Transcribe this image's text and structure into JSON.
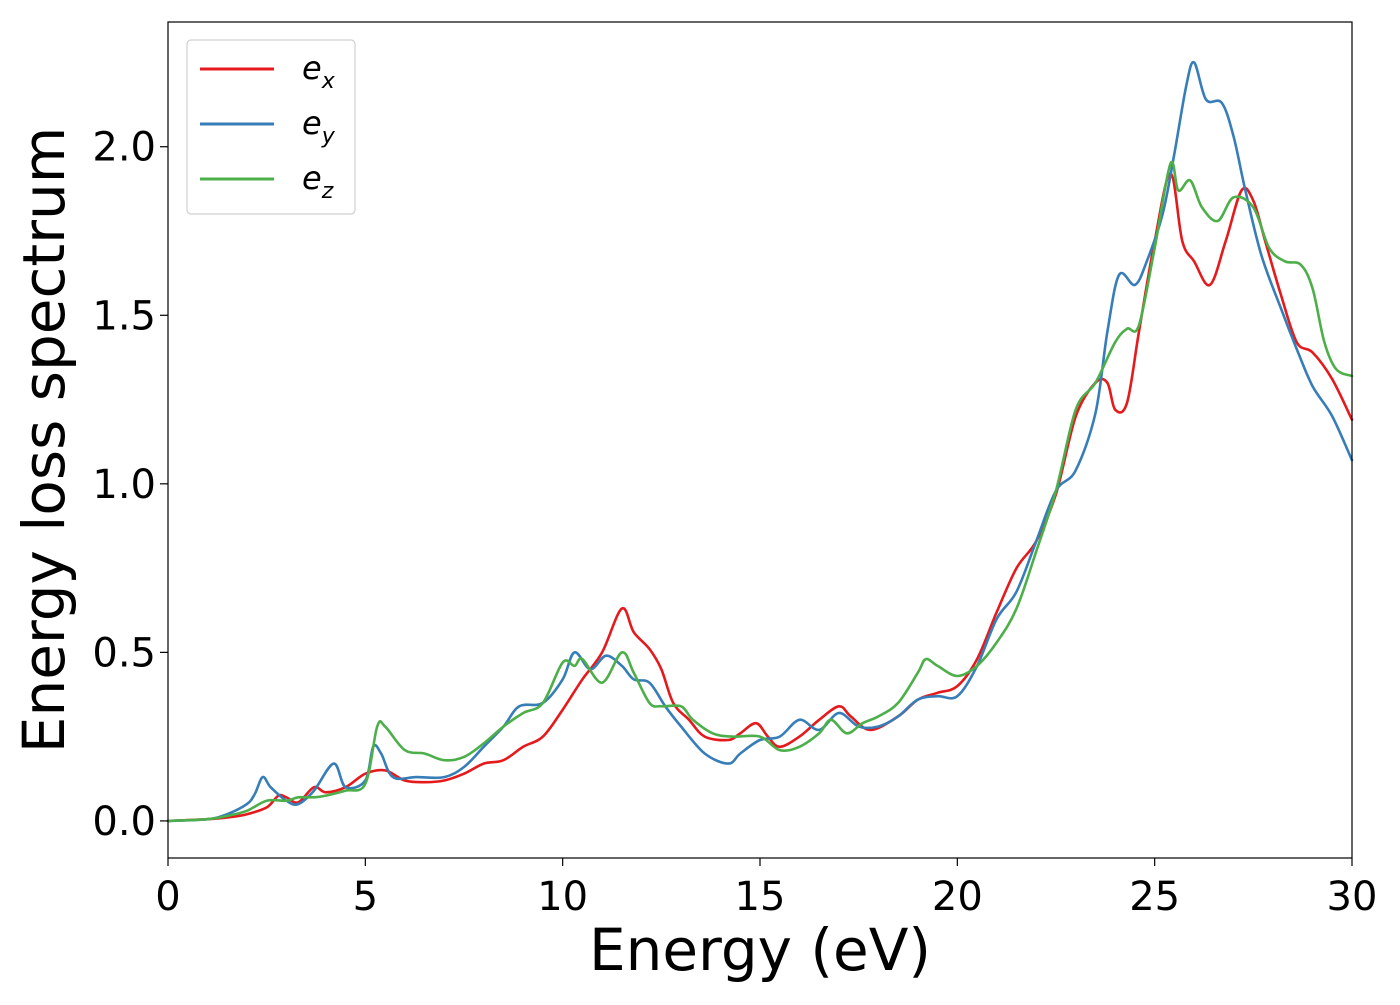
{
  "chart_data": {
    "type": "line",
    "title": "",
    "xlabel": "Energy (eV)",
    "ylabel": "Energy loss spectrum",
    "xlim": [
      0,
      30
    ],
    "ylim": [
      -0.11,
      2.37
    ],
    "xticks": [
      0,
      5,
      10,
      15,
      20,
      25,
      30
    ],
    "xtick_labels": [
      "0",
      "5",
      "10",
      "15",
      "20",
      "25",
      "30"
    ],
    "yticks": [
      0.0,
      0.5,
      1.0,
      1.5,
      2.0
    ],
    "ytick_labels": [
      "0.0",
      "0.5",
      "1.0",
      "1.5",
      "2.0"
    ],
    "grid": false,
    "legend_position": "top-left",
    "series": [
      {
        "name": "e_x",
        "legend_base": "e",
        "legend_sub": "x",
        "color": "#e41a1c",
        "points": [
          [
            0,
            0
          ],
          [
            1,
            0.005
          ],
          [
            1.5,
            0.01
          ],
          [
            2,
            0.02
          ],
          [
            2.5,
            0.04
          ],
          [
            2.8,
            0.075
          ],
          [
            3,
            0.07
          ],
          [
            3.3,
            0.055
          ],
          [
            3.7,
            0.1
          ],
          [
            4,
            0.085
          ],
          [
            4.5,
            0.1
          ],
          [
            5,
            0.14
          ],
          [
            5.5,
            0.15
          ],
          [
            6,
            0.12
          ],
          [
            6.5,
            0.115
          ],
          [
            7,
            0.12
          ],
          [
            7.5,
            0.14
          ],
          [
            8,
            0.17
          ],
          [
            8.5,
            0.18
          ],
          [
            9,
            0.22
          ],
          [
            9.5,
            0.25
          ],
          [
            10,
            0.33
          ],
          [
            10.5,
            0.42
          ],
          [
            11,
            0.5
          ],
          [
            11.5,
            0.63
          ],
          [
            11.8,
            0.56
          ],
          [
            12.2,
            0.51
          ],
          [
            12.5,
            0.45
          ],
          [
            12.8,
            0.35
          ],
          [
            13.2,
            0.3
          ],
          [
            13.6,
            0.25
          ],
          [
            14.2,
            0.24
          ],
          [
            14.5,
            0.26
          ],
          [
            14.9,
            0.29
          ],
          [
            15.2,
            0.25
          ],
          [
            15.5,
            0.22
          ],
          [
            16,
            0.25
          ],
          [
            16.5,
            0.3
          ],
          [
            17,
            0.34
          ],
          [
            17.3,
            0.31
          ],
          [
            17.8,
            0.27
          ],
          [
            18.5,
            0.31
          ],
          [
            19,
            0.36
          ],
          [
            19.5,
            0.38
          ],
          [
            20,
            0.4
          ],
          [
            20.5,
            0.48
          ],
          [
            21,
            0.62
          ],
          [
            21.5,
            0.75
          ],
          [
            22,
            0.83
          ],
          [
            22.5,
            0.97
          ],
          [
            23,
            1.2
          ],
          [
            23.5,
            1.3
          ],
          [
            23.8,
            1.3
          ],
          [
            24,
            1.22
          ],
          [
            24.3,
            1.24
          ],
          [
            24.6,
            1.45
          ],
          [
            25,
            1.72
          ],
          [
            25.4,
            1.92
          ],
          [
            25.7,
            1.72
          ],
          [
            26,
            1.66
          ],
          [
            26.4,
            1.59
          ],
          [
            26.8,
            1.72
          ],
          [
            27.2,
            1.87
          ],
          [
            27.5,
            1.84
          ],
          [
            27.8,
            1.72
          ],
          [
            28.2,
            1.56
          ],
          [
            28.6,
            1.42
          ],
          [
            29,
            1.39
          ],
          [
            29.5,
            1.31
          ],
          [
            30,
            1.19
          ]
        ]
      },
      {
        "name": "e_y",
        "legend_base": "e",
        "legend_sub": "y",
        "color": "#377eb8",
        "points": [
          [
            0,
            0
          ],
          [
            1,
            0.005
          ],
          [
            1.5,
            0.02
          ],
          [
            2,
            0.05
          ],
          [
            2.2,
            0.08
          ],
          [
            2.4,
            0.13
          ],
          [
            2.6,
            0.1
          ],
          [
            3,
            0.06
          ],
          [
            3.3,
            0.05
          ],
          [
            3.7,
            0.09
          ],
          [
            4.2,
            0.17
          ],
          [
            4.5,
            0.1
          ],
          [
            5,
            0.12
          ],
          [
            5.2,
            0.22
          ],
          [
            5.4,
            0.2
          ],
          [
            5.7,
            0.13
          ],
          [
            6.3,
            0.13
          ],
          [
            7,
            0.13
          ],
          [
            7.5,
            0.16
          ],
          [
            8,
            0.22
          ],
          [
            8.5,
            0.28
          ],
          [
            8.9,
            0.34
          ],
          [
            9.5,
            0.35
          ],
          [
            10,
            0.42
          ],
          [
            10.3,
            0.5
          ],
          [
            10.7,
            0.45
          ],
          [
            11.1,
            0.49
          ],
          [
            11.5,
            0.46
          ],
          [
            11.8,
            0.42
          ],
          [
            12.2,
            0.41
          ],
          [
            12.6,
            0.34
          ],
          [
            13,
            0.28
          ],
          [
            13.6,
            0.2
          ],
          [
            14.2,
            0.17
          ],
          [
            14.5,
            0.2
          ],
          [
            15,
            0.24
          ],
          [
            15.5,
            0.25
          ],
          [
            16,
            0.3
          ],
          [
            16.5,
            0.27
          ],
          [
            17,
            0.32
          ],
          [
            17.5,
            0.28
          ],
          [
            18,
            0.28
          ],
          [
            18.5,
            0.31
          ],
          [
            19,
            0.36
          ],
          [
            19.5,
            0.37
          ],
          [
            20,
            0.37
          ],
          [
            20.5,
            0.46
          ],
          [
            21,
            0.6
          ],
          [
            21.5,
            0.68
          ],
          [
            22,
            0.83
          ],
          [
            22.5,
            0.98
          ],
          [
            23,
            1.04
          ],
          [
            23.5,
            1.21
          ],
          [
            23.8,
            1.45
          ],
          [
            24.1,
            1.62
          ],
          [
            24.5,
            1.59
          ],
          [
            24.8,
            1.66
          ],
          [
            25.2,
            1.8
          ],
          [
            25.5,
            1.98
          ],
          [
            25.8,
            2.18
          ],
          [
            26,
            2.25
          ],
          [
            26.3,
            2.14
          ],
          [
            26.7,
            2.13
          ],
          [
            27,
            2.03
          ],
          [
            27.3,
            1.87
          ],
          [
            27.7,
            1.68
          ],
          [
            28.2,
            1.52
          ],
          [
            28.6,
            1.4
          ],
          [
            29,
            1.29
          ],
          [
            29.5,
            1.2
          ],
          [
            30,
            1.07
          ]
        ]
      },
      {
        "name": "e_z",
        "legend_base": "e",
        "legend_sub": "z",
        "color": "#4daf4a",
        "points": [
          [
            0,
            0
          ],
          [
            1,
            0.005
          ],
          [
            1.5,
            0.015
          ],
          [
            2,
            0.03
          ],
          [
            2.5,
            0.06
          ],
          [
            3,
            0.06
          ],
          [
            3.3,
            0.07
          ],
          [
            3.7,
            0.07
          ],
          [
            4,
            0.075
          ],
          [
            4.5,
            0.09
          ],
          [
            5,
            0.11
          ],
          [
            5.3,
            0.28
          ],
          [
            5.5,
            0.28
          ],
          [
            6,
            0.21
          ],
          [
            6.5,
            0.2
          ],
          [
            7,
            0.18
          ],
          [
            7.5,
            0.19
          ],
          [
            8,
            0.23
          ],
          [
            8.5,
            0.28
          ],
          [
            9,
            0.32
          ],
          [
            9.5,
            0.35
          ],
          [
            10,
            0.47
          ],
          [
            10.3,
            0.46
          ],
          [
            10.5,
            0.48
          ],
          [
            11,
            0.41
          ],
          [
            11.5,
            0.5
          ],
          [
            11.8,
            0.44
          ],
          [
            12.2,
            0.35
          ],
          [
            12.5,
            0.34
          ],
          [
            13,
            0.34
          ],
          [
            13.3,
            0.3
          ],
          [
            13.8,
            0.26
          ],
          [
            14.3,
            0.25
          ],
          [
            15,
            0.25
          ],
          [
            15.5,
            0.21
          ],
          [
            16,
            0.22
          ],
          [
            16.5,
            0.26
          ],
          [
            16.8,
            0.3
          ],
          [
            17.2,
            0.26
          ],
          [
            17.6,
            0.29
          ],
          [
            18,
            0.31
          ],
          [
            18.5,
            0.35
          ],
          [
            19,
            0.44
          ],
          [
            19.2,
            0.48
          ],
          [
            19.5,
            0.46
          ],
          [
            20,
            0.43
          ],
          [
            20.5,
            0.46
          ],
          [
            21,
            0.53
          ],
          [
            21.5,
            0.63
          ],
          [
            22,
            0.8
          ],
          [
            22.5,
            0.98
          ],
          [
            23,
            1.22
          ],
          [
            23.5,
            1.3
          ],
          [
            24,
            1.42
          ],
          [
            24.3,
            1.46
          ],
          [
            24.6,
            1.47
          ],
          [
            25,
            1.7
          ],
          [
            25.4,
            1.95
          ],
          [
            25.6,
            1.87
          ],
          [
            25.9,
            1.9
          ],
          [
            26.2,
            1.82
          ],
          [
            26.6,
            1.78
          ],
          [
            27,
            1.85
          ],
          [
            27.5,
            1.82
          ],
          [
            27.9,
            1.7
          ],
          [
            28.3,
            1.66
          ],
          [
            28.7,
            1.65
          ],
          [
            29,
            1.58
          ],
          [
            29.3,
            1.42
          ],
          [
            29.6,
            1.34
          ],
          [
            30,
            1.32
          ]
        ]
      }
    ]
  }
}
